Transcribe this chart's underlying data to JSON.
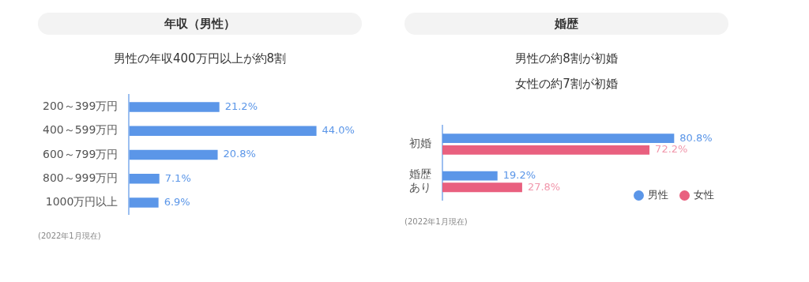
{
  "chart_data": [
    {
      "type": "bar",
      "orientation": "horizontal",
      "title": "年収（男性）",
      "subtitle": "男性の年収400万円以上が約8割",
      "categories": [
        "200～399万円",
        "400～599万円",
        "600～799万円",
        "800～999万円",
        "1000万円以上"
      ],
      "values": [
        21.2,
        44.0,
        20.8,
        7.1,
        6.9
      ],
      "value_labels": [
        "21.2%",
        "44.0%",
        "20.8%",
        "7.1%",
        "6.9%"
      ],
      "color": "#5b96e8",
      "tick_labels": "y",
      "annotations": [
        "(2022年1月現在)"
      ]
    },
    {
      "type": "bar",
      "orientation": "horizontal",
      "title": "婚歴",
      "subtitle": "男性の約8割が初婚女性の約7割が初婚",
      "categories": [
        "初婚",
        "婚歴あり"
      ],
      "series": [
        {
          "name": "男性",
          "color": "#5b96e8",
          "values": [
            80.8,
            19.2
          ],
          "value_labels": [
            "80.8%",
            "19.2%"
          ]
        },
        {
          "name": "女性",
          "color": "#e9607f",
          "values": [
            72.2,
            27.8
          ],
          "value_labels": [
            "72.2%",
            "27.8%"
          ]
        }
      ],
      "tick_labels": "y",
      "legend": "bottom right",
      "annotations": [
        "(2022年1月現在)"
      ]
    }
  ]
}
